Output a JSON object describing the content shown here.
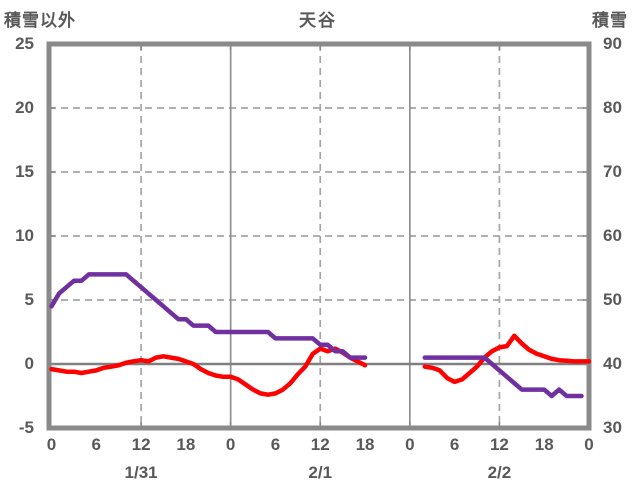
{
  "chart_data": {
    "type": "line",
    "title": "天谷",
    "left_axis": {
      "label": "積雪以外",
      "min": -5,
      "max": 25,
      "ticks": [
        25,
        20,
        15,
        10,
        5,
        0,
        -5
      ],
      "dashed_gridlines": [
        20,
        15,
        10,
        5
      ],
      "zero_line": 0
    },
    "right_axis": {
      "label": "積雪",
      "min": 30,
      "max": 90,
      "ticks": [
        90,
        80,
        70,
        60,
        50,
        40,
        30
      ]
    },
    "x_axis": {
      "total_hours": 72,
      "hour_tick_step": 6,
      "hour_tick_labels": [
        "0",
        "6",
        "12",
        "18",
        "0",
        "6",
        "12",
        "18",
        "0",
        "6",
        "12",
        "18",
        "0"
      ],
      "day_labels": [
        {
          "text": "1/31",
          "center_hour": 12
        },
        {
          "text": "2/1",
          "center_hour": 36
        },
        {
          "text": "2/2",
          "center_hour": 60
        }
      ],
      "dashed_gridline_hours": [
        12,
        36,
        60
      ],
      "solid_gridline_hours": [
        24,
        48
      ],
      "inner_tick_hours": [
        12,
        24,
        36,
        48,
        60
      ]
    },
    "series": [
      {
        "name": "積雪以外",
        "axis": "left",
        "color": "#FF0000",
        "segments": [
          [
            [
              0,
              -0.4
            ],
            [
              1,
              -0.5
            ],
            [
              2,
              -0.6
            ],
            [
              3,
              -0.6
            ],
            [
              4,
              -0.7
            ],
            [
              5,
              -0.6
            ],
            [
              6,
              -0.5
            ],
            [
              7,
              -0.3
            ],
            [
              8,
              -0.2
            ],
            [
              9,
              -0.1
            ],
            [
              10,
              0.1
            ],
            [
              11,
              0.2
            ],
            [
              12,
              0.3
            ],
            [
              13,
              0.2
            ],
            [
              14,
              0.5
            ],
            [
              15,
              0.6
            ],
            [
              16,
              0.5
            ],
            [
              17,
              0.4
            ],
            [
              18,
              0.2
            ],
            [
              19,
              0
            ],
            [
              20,
              -0.4
            ],
            [
              21,
              -0.7
            ],
            [
              22,
              -0.9
            ],
            [
              23,
              -1
            ],
            [
              24,
              -1
            ],
            [
              25,
              -1.2
            ],
            [
              26,
              -1.6
            ],
            [
              27,
              -2
            ],
            [
              28,
              -2.3
            ],
            [
              29,
              -2.4
            ],
            [
              30,
              -2.3
            ],
            [
              31,
              -2
            ],
            [
              32,
              -1.5
            ],
            [
              33,
              -0.8
            ],
            [
              34,
              -0.2
            ],
            [
              35,
              0.8
            ],
            [
              36,
              1.2
            ],
            [
              37,
              1
            ],
            [
              38,
              1.2
            ],
            [
              39,
              0.9
            ],
            [
              40,
              0.5
            ],
            [
              41,
              0.2
            ],
            [
              42,
              -0.1
            ]
          ],
          [
            [
              50,
              -0.2
            ],
            [
              51,
              -0.3
            ],
            [
              52,
              -0.5
            ],
            [
              53,
              -1.1
            ],
            [
              54,
              -1.4
            ],
            [
              55,
              -1.2
            ],
            [
              56,
              -0.7
            ],
            [
              57,
              -0.2
            ],
            [
              58,
              0.5
            ],
            [
              59,
              1
            ],
            [
              60,
              1.3
            ],
            [
              61,
              1.4
            ],
            [
              62,
              2.2
            ],
            [
              63,
              1.6
            ],
            [
              64,
              1.1
            ],
            [
              65,
              0.8
            ],
            [
              66,
              0.6
            ],
            [
              67,
              0.4
            ],
            [
              68,
              0.3
            ],
            [
              69,
              0.25
            ],
            [
              70,
              0.2
            ],
            [
              71,
              0.2
            ],
            [
              72,
              0.2
            ]
          ]
        ]
      },
      {
        "name": "積雪",
        "axis": "right",
        "color": "#7030A0",
        "segments": [
          [
            [
              0,
              49
            ],
            [
              1,
              51
            ],
            [
              2,
              52
            ],
            [
              3,
              53
            ],
            [
              4,
              53
            ],
            [
              5,
              54
            ],
            [
              6,
              54
            ],
            [
              7,
              54
            ],
            [
              8,
              54
            ],
            [
              9,
              54
            ],
            [
              10,
              54
            ],
            [
              11,
              53
            ],
            [
              12,
              52
            ],
            [
              13,
              51
            ],
            [
              14,
              50
            ],
            [
              15,
              49
            ],
            [
              16,
              48
            ],
            [
              17,
              47
            ],
            [
              18,
              47
            ],
            [
              19,
              46
            ],
            [
              20,
              46
            ],
            [
              21,
              46
            ],
            [
              22,
              45
            ],
            [
              23,
              45
            ],
            [
              24,
              45
            ],
            [
              25,
              45
            ],
            [
              26,
              45
            ],
            [
              27,
              45
            ],
            [
              28,
              45
            ],
            [
              29,
              45
            ],
            [
              30,
              44
            ],
            [
              31,
              44
            ],
            [
              32,
              44
            ],
            [
              33,
              44
            ],
            [
              34,
              44
            ],
            [
              35,
              44
            ],
            [
              36,
              43
            ],
            [
              37,
              43
            ],
            [
              38,
              42
            ],
            [
              39,
              42
            ],
            [
              40,
              41
            ],
            [
              41,
              41
            ],
            [
              42,
              41
            ]
          ],
          [
            [
              50,
              41
            ],
            [
              51,
              41
            ],
            [
              52,
              41
            ],
            [
              53,
              41
            ],
            [
              54,
              41
            ],
            [
              55,
              41
            ],
            [
              56,
              41
            ],
            [
              57,
              41
            ],
            [
              58,
              41
            ],
            [
              59,
              40
            ],
            [
              60,
              39
            ],
            [
              61,
              38
            ],
            [
              62,
              37
            ],
            [
              63,
              36
            ],
            [
              64,
              36
            ],
            [
              65,
              36
            ],
            [
              66,
              36
            ],
            [
              67,
              35
            ],
            [
              68,
              36
            ],
            [
              69,
              35
            ],
            [
              70,
              35
            ],
            [
              71,
              35
            ]
          ]
        ]
      }
    ],
    "colors": {
      "background": "#FFFFFF",
      "text": "#595959",
      "border": "#8A8A8A",
      "dashed_grid": "#A6A6A6",
      "solid_grid": "#8F8F8F",
      "zero_line": "#808080"
    },
    "legend": "none",
    "grid": "on"
  }
}
